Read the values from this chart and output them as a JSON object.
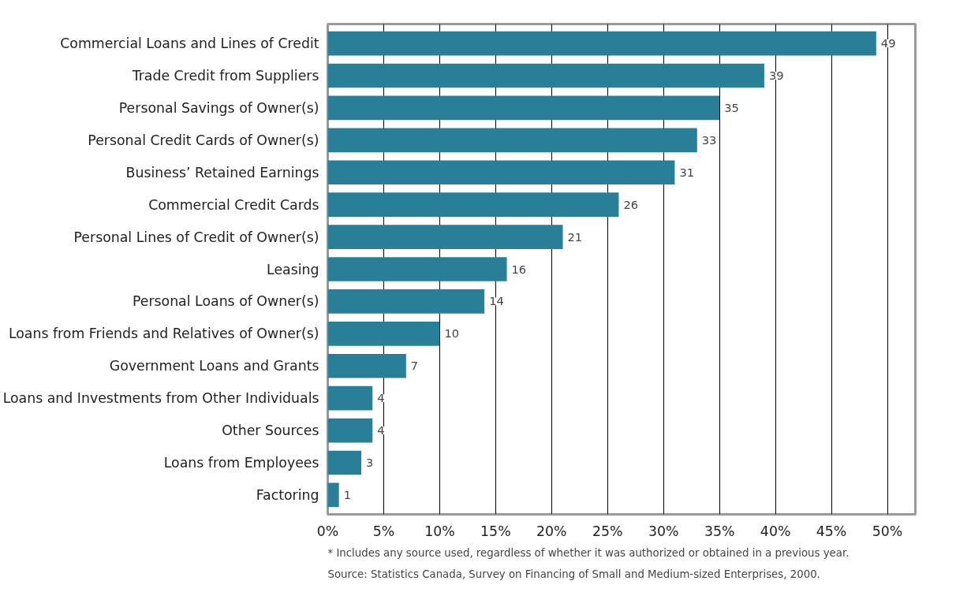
{
  "chart_data": {
    "type": "bar",
    "orientation": "horizontal",
    "categories": [
      "Commercial Loans and Lines of Credit",
      "Trade Credit from Suppliers",
      "Personal Savings of Owner(s)",
      "Personal Credit Cards of Owner(s)",
      "Business’ Retained Earnings",
      "Commercial Credit Cards",
      "Personal Lines of Credit of Owner(s)",
      "Leasing",
      "Personal Loans of Owner(s)",
      "Loans from Friends and Relatives of Owner(s)",
      "Government Loans and Grants",
      "Loans and Investments from Other Individuals",
      "Other Sources",
      "Loans from Employees",
      "Factoring"
    ],
    "values": [
      49,
      39,
      35,
      33,
      31,
      26,
      21,
      16,
      14,
      10,
      7,
      4,
      4,
      3,
      1
    ],
    "color": "#2a7f98",
    "data_labels": true,
    "grid": "x",
    "xlim": [
      0,
      52.5
    ],
    "xticks": [
      {
        "value": 0,
        "label": "0%"
      },
      {
        "value": 5,
        "label": "5%"
      },
      {
        "value": 10,
        "label": "10%"
      },
      {
        "value": 15,
        "label": "15%"
      },
      {
        "value": 20,
        "label": "20%"
      },
      {
        "value": 25,
        "label": "25%"
      },
      {
        "value": 30,
        "label": "30%"
      },
      {
        "value": 35,
        "label": "35%"
      },
      {
        "value": 40,
        "label": "40%"
      },
      {
        "value": 45,
        "label": "45%"
      },
      {
        "value": 50,
        "label": "50%"
      }
    ],
    "annotations": [
      "* Includes any source used, regardless of whether it was authorized or obtained in a previous year.",
      "Source: Statistics Canada, Survey on Financing of Small and Medium-sized Enterprises, 2000."
    ]
  }
}
